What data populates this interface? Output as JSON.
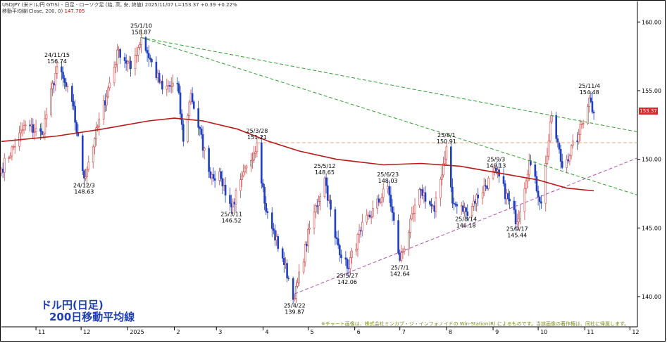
{
  "header": {
    "line1": "USDJPY (米ドル/円 GTIS) - 日足 - ローソク足 (始, 高, 安, 終値)  2025/11/07 L=153.37 +0.39 +0.22%",
    "line2_label": "移動平均線(Close, 200, 0)",
    "line2_value": "147.705"
  },
  "title_line1": "ドル円(日足)",
  "title_line2": "200日移動平均線",
  "copyright": "※チャート画像は、株式会社ミンカブ・ジ・インフォノイドの Win-Station(R) によるものです。当該画像の著作権は、同社に帰属します。",
  "current_price_badge": "153.37",
  "colors": {
    "up_candle_fill": "#ffffff",
    "up_candle_stroke": "#d04848",
    "down_candle": "#1f3fbf",
    "ma_line": "#b81818",
    "trend_green": "#2e9e2e",
    "support_purple": "#b050b0",
    "level_orange": "#e8a878",
    "title": "#1d3fb3",
    "badge": "#d42a2a"
  },
  "chart_data": {
    "type": "line",
    "symbol": "USDJPY",
    "ylim": [
      137.8,
      161.5
    ],
    "y_ticks": [
      "160.00",
      "155.00",
      "150.00",
      "145.00",
      "140.00"
    ],
    "y_tick_values": [
      160,
      155,
      150,
      145,
      140
    ],
    "x_ticks": [
      "11",
      "12",
      "2025",
      "2",
      "3",
      "4",
      "5",
      "6",
      "7",
      "8",
      "9",
      "10",
      "11",
      "12"
    ],
    "x_tick_dates": [
      "2024-11-01",
      "2024-12-01",
      "2025-01-01",
      "2025-02-01",
      "2025-03-01",
      "2025-04-01",
      "2025-05-01",
      "2025-06-01",
      "2025-07-01",
      "2025-08-01",
      "2025-09-01",
      "2025-10-01",
      "2025-11-01",
      "2025-12-01"
    ],
    "x_range": [
      "2024-10-09",
      "2025-12-06"
    ],
    "pivots": [
      {
        "date": "2024-10-09",
        "value": 149.3
      },
      {
        "date": "2024-10-25",
        "value": 152.5
      },
      {
        "date": "2024-11-05",
        "value": 151.8
      },
      {
        "date": "2024-11-15",
        "value": 156.74
      },
      {
        "date": "2024-11-25",
        "value": 154.2
      },
      {
        "date": "2024-12-03",
        "value": 148.63
      },
      {
        "date": "2024-12-10",
        "value": 151.5
      },
      {
        "date": "2024-12-26",
        "value": 158.0
      },
      {
        "date": "2025-01-03",
        "value": 156.6
      },
      {
        "date": "2025-01-10",
        "value": 158.87
      },
      {
        "date": "2025-01-24",
        "value": 155.1
      },
      {
        "date": "2025-02-03",
        "value": 155.5
      },
      {
        "date": "2025-02-07",
        "value": 151.3
      },
      {
        "date": "2025-02-12",
        "value": 154.8
      },
      {
        "date": "2025-02-24",
        "value": 149.1
      },
      {
        "date": "2025-03-04",
        "value": 148.6
      },
      {
        "date": "2025-03-11",
        "value": 146.52
      },
      {
        "date": "2025-03-28",
        "value": 151.21
      },
      {
        "date": "2025-04-03",
        "value": 146.2
      },
      {
        "date": "2025-04-14",
        "value": 142.8
      },
      {
        "date": "2025-04-22",
        "value": 139.87
      },
      {
        "date": "2025-05-02",
        "value": 145.0
      },
      {
        "date": "2025-05-12",
        "value": 148.65
      },
      {
        "date": "2025-05-19",
        "value": 144.3
      },
      {
        "date": "2025-05-27",
        "value": 142.06
      },
      {
        "date": "2025-06-05",
        "value": 144.8
      },
      {
        "date": "2025-06-23",
        "value": 148.03
      },
      {
        "date": "2025-07-01",
        "value": 142.64
      },
      {
        "date": "2025-07-15",
        "value": 147.8
      },
      {
        "date": "2025-07-24",
        "value": 146.2
      },
      {
        "date": "2025-08-01",
        "value": 150.91
      },
      {
        "date": "2025-08-05",
        "value": 146.8
      },
      {
        "date": "2025-08-14",
        "value": 146.18
      },
      {
        "date": "2025-09-03",
        "value": 149.13
      },
      {
        "date": "2025-09-17",
        "value": 145.44
      },
      {
        "date": "2025-09-25",
        "value": 149.9
      },
      {
        "date": "2025-10-03",
        "value": 146.8
      },
      {
        "date": "2025-10-10",
        "value": 153.2
      },
      {
        "date": "2025-10-17",
        "value": 149.4
      },
      {
        "date": "2025-10-28",
        "value": 151.8
      },
      {
        "date": "2025-11-04",
        "value": 154.48
      },
      {
        "date": "2025-11-07",
        "value": 153.37
      }
    ],
    "moving_average": {
      "name": "移動平均線(Close, 200, 0)",
      "points": [
        {
          "date": "2024-10-09",
          "value": 151.3
        },
        {
          "date": "2024-11-15",
          "value": 151.7
        },
        {
          "date": "2024-12-15",
          "value": 152.2
        },
        {
          "date": "2025-01-15",
          "value": 152.8
        },
        {
          "date": "2025-02-01",
          "value": 153.0
        },
        {
          "date": "2025-02-20",
          "value": 152.8
        },
        {
          "date": "2025-03-15",
          "value": 152.2
        },
        {
          "date": "2025-04-05",
          "value": 151.3
        },
        {
          "date": "2025-04-25",
          "value": 150.6
        },
        {
          "date": "2025-05-20",
          "value": 150.0
        },
        {
          "date": "2025-06-20",
          "value": 149.6
        },
        {
          "date": "2025-07-15",
          "value": 149.7
        },
        {
          "date": "2025-08-10",
          "value": 149.5
        },
        {
          "date": "2025-09-05",
          "value": 149.0
        },
        {
          "date": "2025-10-01",
          "value": 148.5
        },
        {
          "date": "2025-10-20",
          "value": 147.9
        },
        {
          "date": "2025-11-07",
          "value": 147.705
        }
      ]
    },
    "trend_lines": [
      {
        "style": "dash",
        "color": "#2e9e2e",
        "from": {
          "date": "2025-01-10",
          "value": 158.87
        },
        "to": {
          "date": "2025-12-06",
          "value": 152.0
        }
      },
      {
        "style": "dash",
        "color": "#2e9e2e",
        "from": {
          "date": "2025-01-10",
          "value": 158.87
        },
        "to": {
          "date": "2025-12-06",
          "value": 147.4
        }
      },
      {
        "style": "dash",
        "color": "#b050b0",
        "from": {
          "date": "2025-04-22",
          "value": 140.2
        },
        "to": {
          "date": "2025-12-06",
          "value": 150.1
        }
      },
      {
        "style": "dash",
        "color": "#e8a878",
        "from": {
          "date": "2025-03-28",
          "value": 151.21
        },
        "to": {
          "date": "2025-12-06",
          "value": 151.21
        }
      }
    ],
    "annotations": [
      {
        "date_label": "24/11/15",
        "price": "156.74",
        "date": "2024-11-15",
        "value": 156.74,
        "pos": "above"
      },
      {
        "date_label": "24/12/3",
        "price": "148.63",
        "date": "2024-12-03",
        "value": 148.63,
        "pos": "below"
      },
      {
        "date_label": "25/1/10",
        "price": "158.87",
        "date": "2025-01-10",
        "value": 158.87,
        "pos": "above"
      },
      {
        "date_label": "25/3/11",
        "price": "146.52",
        "date": "2025-03-11",
        "value": 146.52,
        "pos": "below"
      },
      {
        "date_label": "25/3/28",
        "price": "151.21",
        "date": "2025-03-28",
        "value": 151.21,
        "pos": "above"
      },
      {
        "date_label": "25/4/22",
        "price": "139.87",
        "date": "2025-04-22",
        "value": 139.87,
        "pos": "below"
      },
      {
        "date_label": "25/5/12",
        "price": "148.65",
        "date": "2025-05-12",
        "value": 148.65,
        "pos": "above"
      },
      {
        "date_label": "25/5/27",
        "price": "142.06",
        "date": "2025-05-27",
        "value": 142.06,
        "pos": "below"
      },
      {
        "date_label": "25/6/23",
        "price": "148.03",
        "date": "2025-06-23",
        "value": 148.03,
        "pos": "above"
      },
      {
        "date_label": "25/7/1",
        "price": "142.64",
        "date": "2025-07-01",
        "value": 142.64,
        "pos": "below"
      },
      {
        "date_label": "25/8/1",
        "price": "150.91",
        "date": "2025-08-01",
        "value": 150.91,
        "pos": "above"
      },
      {
        "date_label": "25/8/14",
        "price": "146.18",
        "date": "2025-08-14",
        "value": 146.18,
        "pos": "below"
      },
      {
        "date_label": "25/9/3",
        "price": "149.13",
        "date": "2025-09-03",
        "value": 149.13,
        "pos": "above"
      },
      {
        "date_label": "25/9/17",
        "price": "145.44",
        "date": "2025-09-17",
        "value": 145.44,
        "pos": "below"
      },
      {
        "date_label": "25/11/4",
        "price": "154.48",
        "date": "2025-11-04",
        "value": 154.48,
        "pos": "above"
      }
    ],
    "grid": false
  }
}
